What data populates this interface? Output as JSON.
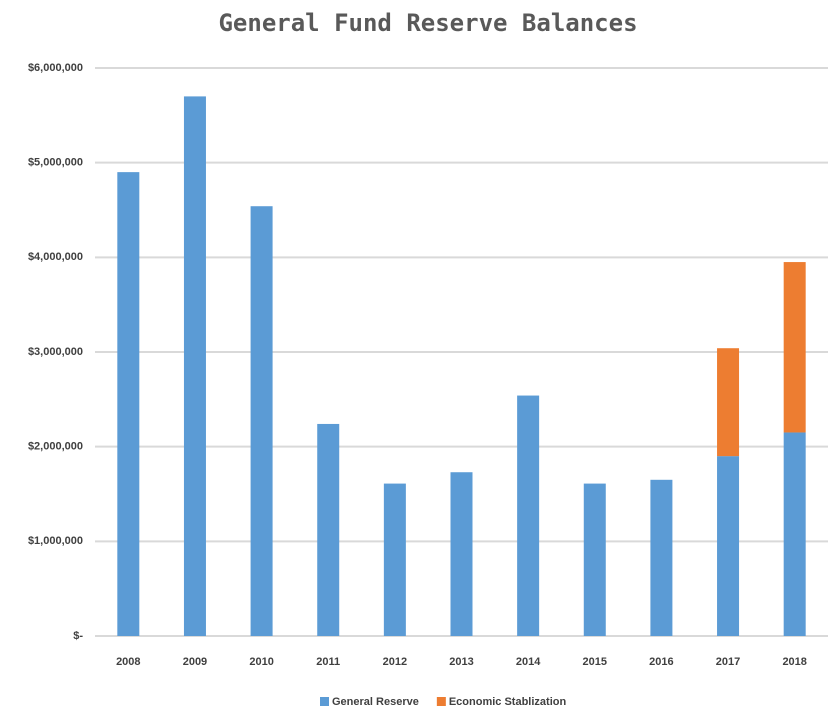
{
  "chart_data": {
    "type": "stacked_bar",
    "title": "General Fund Reserve Balances",
    "categories": [
      "2008",
      "2009",
      "2010",
      "2011",
      "2012",
      "2013",
      "2014",
      "2015",
      "2016",
      "2017",
      "2018"
    ],
    "series": [
      {
        "name": "General Reserve",
        "color": "#5b9bd5",
        "values": [
          4900000,
          5700000,
          4540000,
          2240000,
          1610000,
          1730000,
          2540000,
          1610000,
          1650000,
          1900000,
          2150000
        ]
      },
      {
        "name": "Economic Stablization",
        "color": "#ed7d31",
        "values": [
          null,
          null,
          null,
          null,
          null,
          null,
          null,
          null,
          null,
          1140000,
          1800000
        ]
      }
    ],
    "ylim": [
      0,
      6000000
    ],
    "yticks": [
      {
        "value": 0,
        "label": "$-"
      },
      {
        "value": 1000000,
        "label": "$1,000,000"
      },
      {
        "value": 2000000,
        "label": "$2,000,000"
      },
      {
        "value": 3000000,
        "label": "$3,000,000"
      },
      {
        "value": 4000000,
        "label": "$4,000,000"
      },
      {
        "value": 5000000,
        "label": "$5,000,000"
      },
      {
        "value": 6000000,
        "label": "$6,000,000"
      }
    ],
    "grid": true,
    "legend": "bottom"
  }
}
